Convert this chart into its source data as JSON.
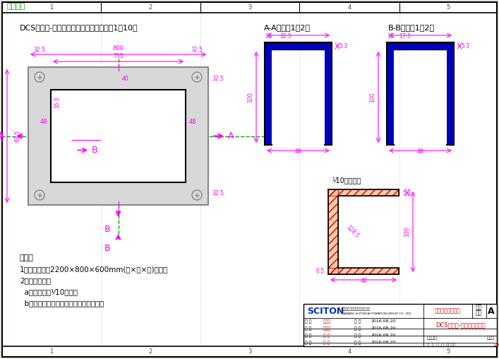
{
  "title": "DCS标准柜-底座槽锂加工图（图纸比例：1：10）",
  "section_aa": "A-A剔面（1：2）",
  "section_bb": "B-B剔面（1：2）",
  "channel_label": "⅟10槽锂标准",
  "tab_title": "单个机柜",
  "note_title": "说明：",
  "note_line1": "1、本图适用与2200×800×600mm(高×宽×深)机柜。",
  "note_line2": "2、底座材料：",
  "note_line3": "  a、槽锬选用⅟10槽锂。",
  "note_line4": "  b、底座油漆：底漆红丹漆，面漆黑色。",
  "bg_color": "#e8e8e0",
  "white": "#ffffff",
  "black": "#000000",
  "magenta": "#ff00ff",
  "blue_dark": "#0000bb",
  "gray": "#888888",
  "red": "#cc0000",
  "green": "#00aa00",
  "company": "SCITON",
  "company_cn": "南京兴自动化信息服务有限公司",
  "company_en": "NANJING SCITON AUTOMATION GROUP CO., LTD.",
  "design_dept": "易技设计标准图库",
  "drawing_title": "DCS标准柜-底座槽锂加工图",
  "proj": "工程",
  "ver": "版本",
  "sheet": "A",
  "rows": [
    [
      "拟 木",
      "刘智宝",
      "日 期",
      "2016.08.20"
    ],
    [
      "校 对",
      "刘智宝",
      "日 期",
      "2016.08.20"
    ],
    [
      "设 计",
      "刘 候",
      "日 期",
      "2016.08.20"
    ],
    [
      "制 图",
      "刘 候",
      "日 期",
      "2016.08.20"
    ]
  ]
}
